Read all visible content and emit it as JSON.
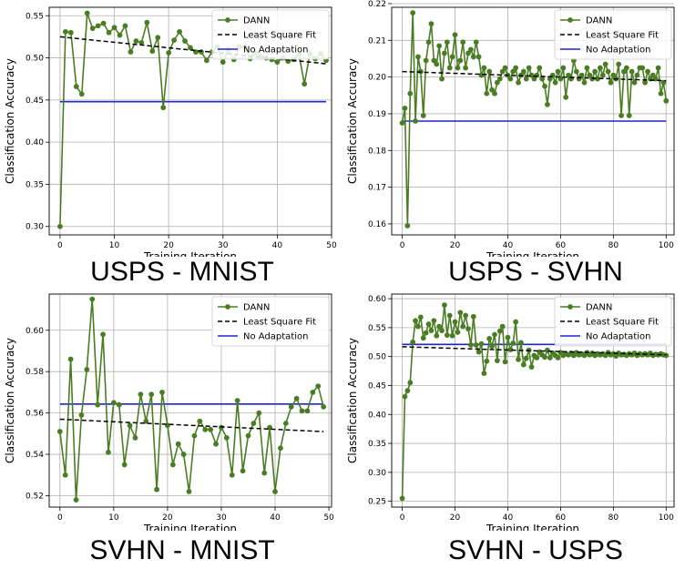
{
  "legend_labels": {
    "dann": "DANN",
    "fit": "Least Square Fit",
    "noadapt": "No Adaptation"
  },
  "colors": {
    "dann": "#4a7d23",
    "fit": "#000000",
    "noadapt": "#1f23d6",
    "grid": "#b0b0b0"
  },
  "chart_data": [
    {
      "type": "line",
      "panel_caption": "USPS - MNIST",
      "xlabel": "Training Iteration",
      "ylabel": "Classification Accuracy",
      "xlim": [
        -2,
        50
      ],
      "ylim": [
        0.29,
        0.56
      ],
      "xticks": [
        0,
        10,
        20,
        30,
        40,
        50
      ],
      "yticks": [
        0.3,
        0.35,
        0.4,
        0.45,
        0.5,
        0.55
      ],
      "legend_position": "top-right",
      "grid": true,
      "series": [
        {
          "name": "DANN",
          "x_start": 0,
          "values": [
            0.3,
            0.531,
            0.53,
            0.466,
            0.457,
            0.553,
            0.535,
            0.538,
            0.541,
            0.53,
            0.536,
            0.527,
            0.538,
            0.507,
            0.52,
            0.518,
            0.542,
            0.508,
            0.524,
            0.441,
            0.506,
            0.521,
            0.531,
            0.52,
            0.512,
            0.507,
            0.507,
            0.497,
            0.507,
            0.513,
            0.495,
            0.51,
            0.498,
            0.513,
            0.513,
            0.499,
            0.506,
            0.502,
            0.5,
            0.498,
            0.495,
            0.5,
            0.496,
            0.498,
            0.504,
            0.469,
            0.505,
            0.499,
            0.505,
            0.497
          ]
        },
        {
          "name": "Least Square Fit",
          "x": [
            0,
            49
          ],
          "values": [
            0.525,
            0.493
          ]
        },
        {
          "name": "No Adaptation",
          "x": [
            0,
            49
          ],
          "values": [
            0.448,
            0.448
          ]
        }
      ]
    },
    {
      "type": "line",
      "panel_caption": "USPS - SVHN",
      "xlabel": "Training Iteration",
      "ylabel": "Classification Accuracy",
      "xlim": [
        -4,
        103
      ],
      "ylim": [
        0.157,
        0.219
      ],
      "xticks": [
        0,
        20,
        40,
        60,
        80,
        100
      ],
      "yticks": [
        0.16,
        0.17,
        0.18,
        0.19,
        0.2,
        0.21,
        0.22
      ],
      "legend_position": "top-right",
      "grid": true,
      "series": [
        {
          "name": "DANN",
          "x_start": 0,
          "values": [
            0.1875,
            0.1915,
            0.1595,
            0.1955,
            0.2175,
            0.188,
            0.2055,
            0.2015,
            0.1895,
            0.2045,
            0.2095,
            0.2145,
            0.2045,
            0.2035,
            0.2085,
            0.1995,
            0.2065,
            0.2095,
            0.2025,
            0.2055,
            0.2115,
            0.2025,
            0.2045,
            0.2095,
            0.2025,
            0.2065,
            0.2075,
            0.2055,
            0.2095,
            0.2055,
            0.2005,
            0.2025,
            0.1955,
            0.2015,
            0.1965,
            0.1955,
            0.1985,
            0.1995,
            0.2015,
            0.2025,
            0.2005,
            0.1995,
            0.2015,
            0.2025,
            0.1985,
            0.2005,
            0.2015,
            0.1995,
            0.2025,
            0.2005,
            0.1995,
            0.2005,
            0.2025,
            0.1995,
            0.1975,
            0.1925,
            0.1995,
            0.2005,
            0.1985,
            0.2015,
            0.1995,
            0.2025,
            0.1945,
            0.2005,
            0.1995,
            0.2045,
            0.2015,
            0.1995,
            0.2005,
            0.1985,
            0.2025,
            0.2005,
            0.1995,
            0.2015,
            0.1995,
            0.2025,
            0.2005,
            0.2035,
            0.2015,
            0.1985,
            0.2005,
            0.1995,
            0.2035,
            0.1895,
            0.2015,
            0.2025,
            0.1895,
            0.2015,
            0.1985,
            0.2005,
            0.2025,
            0.2025,
            0.1985,
            0.2015,
            0.1995,
            0.2005,
            0.1995,
            0.2025,
            0.1955,
            0.1985,
            0.1935
          ]
        },
        {
          "name": "Least Square Fit",
          "x": [
            0,
            100
          ],
          "values": [
            0.2015,
            0.199
          ]
        },
        {
          "name": "No Adaptation",
          "x": [
            0,
            100
          ],
          "values": [
            0.188,
            0.188
          ]
        }
      ]
    },
    {
      "type": "line",
      "panel_caption": "SVHN - MNIST",
      "xlabel": "Training Iteration",
      "ylabel": "Classification Accuracy",
      "xlim": [
        -2,
        50.5
      ],
      "ylim": [
        0.5145,
        0.6175
      ],
      "xticks": [
        0,
        10,
        20,
        30,
        40,
        50
      ],
      "yticks": [
        0.52,
        0.54,
        0.56,
        0.58,
        0.6
      ],
      "legend_position": "top-right",
      "grid": true,
      "series": [
        {
          "name": "DANN",
          "x_start": 0,
          "values": [
            0.551,
            0.53,
            0.586,
            0.518,
            0.559,
            0.581,
            0.615,
            0.564,
            0.598,
            0.541,
            0.565,
            0.564,
            0.535,
            0.554,
            0.548,
            0.569,
            0.556,
            0.569,
            0.523,
            0.57,
            0.554,
            0.535,
            0.545,
            0.54,
            0.522,
            0.549,
            0.556,
            0.552,
            0.552,
            0.545,
            0.553,
            0.548,
            0.53,
            0.566,
            0.532,
            0.549,
            0.555,
            0.56,
            0.531,
            0.553,
            0.522,
            0.543,
            0.555,
            0.563,
            0.567,
            0.561,
            0.561,
            0.57,
            0.573,
            0.563
          ]
        },
        {
          "name": "Least Square Fit",
          "x": [
            0,
            49
          ],
          "values": [
            0.557,
            0.551
          ]
        },
        {
          "name": "No Adaptation",
          "x": [
            0,
            49
          ],
          "values": [
            0.5643,
            0.5643
          ]
        }
      ]
    },
    {
      "type": "line",
      "panel_caption": "SVHN - USPS",
      "xlabel": "Training Iteration",
      "ylabel": "Classification Accuracy",
      "xlim": [
        -4,
        103
      ],
      "ylim": [
        0.24,
        0.608
      ],
      "xticks": [
        0,
        20,
        40,
        60,
        80,
        100
      ],
      "yticks": [
        0.25,
        0.3,
        0.35,
        0.4,
        0.45,
        0.5,
        0.55,
        0.6
      ],
      "legend_position": "top-right",
      "grid": true,
      "series": [
        {
          "name": "DANN",
          "x_start": 0,
          "values": [
            0.255,
            0.431,
            0.441,
            0.455,
            0.525,
            0.562,
            0.552,
            0.568,
            0.532,
            0.541,
            0.556,
            0.545,
            0.562,
            0.536,
            0.552,
            0.545,
            0.589,
            0.537,
            0.571,
            0.536,
            0.56,
            0.542,
            0.576,
            0.552,
            0.571,
            0.548,
            0.52,
            0.569,
            0.52,
            0.508,
            0.522,
            0.471,
            0.492,
            0.531,
            0.518,
            0.538,
            0.493,
            0.544,
            0.552,
            0.491,
            0.533,
            0.512,
            0.523,
            0.56,
            0.495,
            0.524,
            0.486,
            0.497,
            0.511,
            0.482,
            0.502,
            0.498,
            0.508,
            0.503,
            0.499,
            0.511,
            0.498,
            0.506,
            0.502,
            0.498,
            0.507,
            0.502,
            0.505,
            0.503,
            0.506,
            0.502,
            0.507,
            0.503,
            0.505,
            0.502,
            0.507,
            0.503,
            0.506,
            0.502,
            0.505,
            0.503,
            0.505,
            0.502,
            0.507,
            0.503,
            0.505,
            0.501,
            0.506,
            0.503,
            0.504,
            0.502,
            0.505,
            0.503,
            0.506,
            0.502,
            0.505,
            0.503,
            0.505,
            0.503,
            0.506,
            0.502,
            0.504,
            0.503,
            0.505,
            0.503,
            0.502
          ]
        },
        {
          "name": "Least Square Fit",
          "x": [
            0,
            100
          ],
          "values": [
            0.517,
            0.503
          ]
        },
        {
          "name": "No Adaptation",
          "x": [
            0,
            100
          ],
          "values": [
            0.521,
            0.521
          ]
        }
      ]
    }
  ]
}
